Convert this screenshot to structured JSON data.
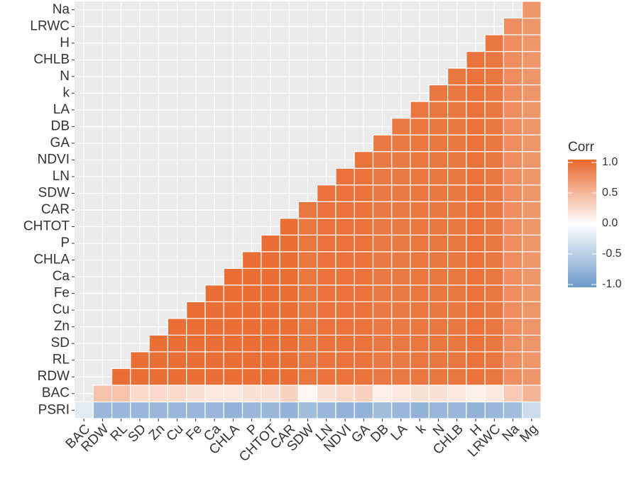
{
  "chart_data": {
    "type": "heatmap",
    "x": [
      "BAC",
      "RDW",
      "RL",
      "SD",
      "Zn",
      "Cu",
      "Fe",
      "Ca",
      "CHLA",
      "P",
      "CHTOT",
      "CAR",
      "SDW",
      "LN",
      "NDVI",
      "GA",
      "DB",
      "LA",
      "k",
      "N",
      "CHLB",
      "H",
      "LRWC",
      "Na",
      "Mg"
    ],
    "y": [
      "PSRI",
      "BAC",
      "RDW",
      "RL",
      "SD",
      "Zn",
      "Cu",
      "Fe",
      "Ca",
      "CHLA",
      "P",
      "CHTOT",
      "CAR",
      "SDW",
      "LN",
      "NDVI",
      "GA",
      "DB",
      "LA",
      "k",
      "N",
      "CHLB",
      "H",
      "LRWC",
      "Na"
    ],
    "z": [
      [
        -0.2,
        -0.7,
        -0.7,
        -0.7,
        -0.7,
        -0.7,
        -0.7,
        -0.7,
        -0.75,
        -0.7,
        -0.7,
        -0.75,
        -0.65,
        -0.7,
        -0.75,
        -0.75,
        -0.65,
        -0.7,
        -0.75,
        -0.7,
        -0.7,
        -0.75,
        -0.7,
        -0.65,
        -0.35
      ],
      [
        null,
        0.4,
        0.4,
        0.25,
        0.25,
        0.25,
        0.2,
        0.15,
        0.15,
        0.2,
        0.2,
        0.3,
        0.05,
        0.2,
        0.25,
        0.3,
        0.1,
        0.15,
        0.2,
        0.2,
        0.15,
        0.1,
        0.15,
        0.35,
        0.5
      ],
      [
        null,
        null,
        0.95,
        0.95,
        0.95,
        0.95,
        0.95,
        0.95,
        0.95,
        0.95,
        0.95,
        0.95,
        0.9,
        0.92,
        0.92,
        0.92,
        0.88,
        0.88,
        0.9,
        0.9,
        0.9,
        0.92,
        0.9,
        0.75,
        0.7
      ],
      [
        null,
        null,
        null,
        0.95,
        0.95,
        0.95,
        0.95,
        0.95,
        0.95,
        0.95,
        0.95,
        0.95,
        0.9,
        0.92,
        0.92,
        0.92,
        0.88,
        0.88,
        0.9,
        0.9,
        0.9,
        0.92,
        0.9,
        0.75,
        0.7
      ],
      [
        null,
        null,
        null,
        null,
        0.95,
        0.95,
        0.95,
        0.95,
        0.95,
        0.95,
        0.95,
        0.95,
        0.9,
        0.92,
        0.92,
        0.92,
        0.88,
        0.88,
        0.9,
        0.9,
        0.9,
        0.92,
        0.9,
        0.75,
        0.7
      ],
      [
        null,
        null,
        null,
        null,
        null,
        0.95,
        0.95,
        0.95,
        0.95,
        0.95,
        0.95,
        0.95,
        0.9,
        0.92,
        0.92,
        0.92,
        0.88,
        0.88,
        0.9,
        0.9,
        0.9,
        0.92,
        0.9,
        0.75,
        0.7
      ],
      [
        null,
        null,
        null,
        null,
        null,
        null,
        0.95,
        0.95,
        0.95,
        0.95,
        0.95,
        0.95,
        0.9,
        0.92,
        0.92,
        0.92,
        0.88,
        0.88,
        0.9,
        0.9,
        0.9,
        0.92,
        0.9,
        0.75,
        0.7
      ],
      [
        null,
        null,
        null,
        null,
        null,
        null,
        null,
        0.95,
        0.95,
        0.95,
        0.95,
        0.95,
        0.9,
        0.92,
        0.92,
        0.92,
        0.88,
        0.88,
        0.9,
        0.9,
        0.9,
        0.92,
        0.9,
        0.75,
        0.7
      ],
      [
        null,
        null,
        null,
        null,
        null,
        null,
        null,
        null,
        0.95,
        0.95,
        0.95,
        0.95,
        0.9,
        0.92,
        0.92,
        0.92,
        0.88,
        0.88,
        0.9,
        0.9,
        0.9,
        0.92,
        0.9,
        0.75,
        0.7
      ],
      [
        null,
        null,
        null,
        null,
        null,
        null,
        null,
        null,
        null,
        0.95,
        0.95,
        0.95,
        0.9,
        0.92,
        0.92,
        0.92,
        0.88,
        0.88,
        0.9,
        0.9,
        0.9,
        0.92,
        0.9,
        0.75,
        0.7
      ],
      [
        null,
        null,
        null,
        null,
        null,
        null,
        null,
        null,
        null,
        null,
        0.95,
        0.95,
        0.9,
        0.92,
        0.92,
        0.92,
        0.88,
        0.88,
        0.9,
        0.9,
        0.9,
        0.92,
        0.9,
        0.75,
        0.7
      ],
      [
        null,
        null,
        null,
        null,
        null,
        null,
        null,
        null,
        null,
        null,
        null,
        0.95,
        0.9,
        0.92,
        0.92,
        0.92,
        0.88,
        0.88,
        0.9,
        0.9,
        0.9,
        0.92,
        0.9,
        0.75,
        0.7
      ],
      [
        null,
        null,
        null,
        null,
        null,
        null,
        null,
        null,
        null,
        null,
        null,
        null,
        0.9,
        0.92,
        0.92,
        0.92,
        0.88,
        0.88,
        0.9,
        0.9,
        0.9,
        0.92,
        0.9,
        0.75,
        0.7
      ],
      [
        null,
        null,
        null,
        null,
        null,
        null,
        null,
        null,
        null,
        null,
        null,
        null,
        null,
        0.92,
        0.92,
        0.92,
        0.88,
        0.88,
        0.9,
        0.9,
        0.9,
        0.92,
        0.9,
        0.75,
        0.7
      ],
      [
        null,
        null,
        null,
        null,
        null,
        null,
        null,
        null,
        null,
        null,
        null,
        null,
        null,
        null,
        0.92,
        0.92,
        0.88,
        0.88,
        0.9,
        0.9,
        0.9,
        0.92,
        0.9,
        0.75,
        0.7
      ],
      [
        null,
        null,
        null,
        null,
        null,
        null,
        null,
        null,
        null,
        null,
        null,
        null,
        null,
        null,
        null,
        0.92,
        0.88,
        0.88,
        0.9,
        0.9,
        0.9,
        0.92,
        0.9,
        0.75,
        0.7
      ],
      [
        null,
        null,
        null,
        null,
        null,
        null,
        null,
        null,
        null,
        null,
        null,
        null,
        null,
        null,
        null,
        null,
        0.88,
        0.88,
        0.9,
        0.9,
        0.9,
        0.92,
        0.9,
        0.75,
        0.7
      ],
      [
        null,
        null,
        null,
        null,
        null,
        null,
        null,
        null,
        null,
        null,
        null,
        null,
        null,
        null,
        null,
        null,
        null,
        0.88,
        0.9,
        0.9,
        0.9,
        0.92,
        0.9,
        0.75,
        0.7
      ],
      [
        null,
        null,
        null,
        null,
        null,
        null,
        null,
        null,
        null,
        null,
        null,
        null,
        null,
        null,
        null,
        null,
        null,
        null,
        0.9,
        0.9,
        0.9,
        0.92,
        0.9,
        0.75,
        0.7
      ],
      [
        null,
        null,
        null,
        null,
        null,
        null,
        null,
        null,
        null,
        null,
        null,
        null,
        null,
        null,
        null,
        null,
        null,
        null,
        null,
        0.9,
        0.9,
        0.92,
        0.9,
        0.75,
        0.7
      ],
      [
        null,
        null,
        null,
        null,
        null,
        null,
        null,
        null,
        null,
        null,
        null,
        null,
        null,
        null,
        null,
        null,
        null,
        null,
        null,
        null,
        0.9,
        0.92,
        0.9,
        0.75,
        0.7
      ],
      [
        null,
        null,
        null,
        null,
        null,
        null,
        null,
        null,
        null,
        null,
        null,
        null,
        null,
        null,
        null,
        null,
        null,
        null,
        null,
        null,
        null,
        0.92,
        0.9,
        0.75,
        0.7
      ],
      [
        null,
        null,
        null,
        null,
        null,
        null,
        null,
        null,
        null,
        null,
        null,
        null,
        null,
        null,
        null,
        null,
        null,
        null,
        null,
        null,
        null,
        null,
        0.9,
        0.75,
        0.7
      ],
      [
        null,
        null,
        null,
        null,
        null,
        null,
        null,
        null,
        null,
        null,
        null,
        null,
        null,
        null,
        null,
        null,
        null,
        null,
        null,
        null,
        null,
        null,
        null,
        0.75,
        0.7
      ],
      [
        null,
        null,
        null,
        null,
        null,
        null,
        null,
        null,
        null,
        null,
        null,
        null,
        null,
        null,
        null,
        null,
        null,
        null,
        null,
        null,
        null,
        null,
        null,
        null,
        0.7
      ]
    ],
    "colors": {
      "low": "#6d9ac9",
      "mid": "#ffffff",
      "high": "#e8672b"
    },
    "legend_title": "Corr",
    "zlim": [
      -1,
      1
    ],
    "zticks": [
      {
        "value": 1,
        "label": "1.0"
      },
      0.5,
      {
        "value": 0,
        "label": "0.0"
      },
      -0.5,
      {
        "value": -1,
        "label": "-1.0"
      }
    ],
    "grid": true
  }
}
